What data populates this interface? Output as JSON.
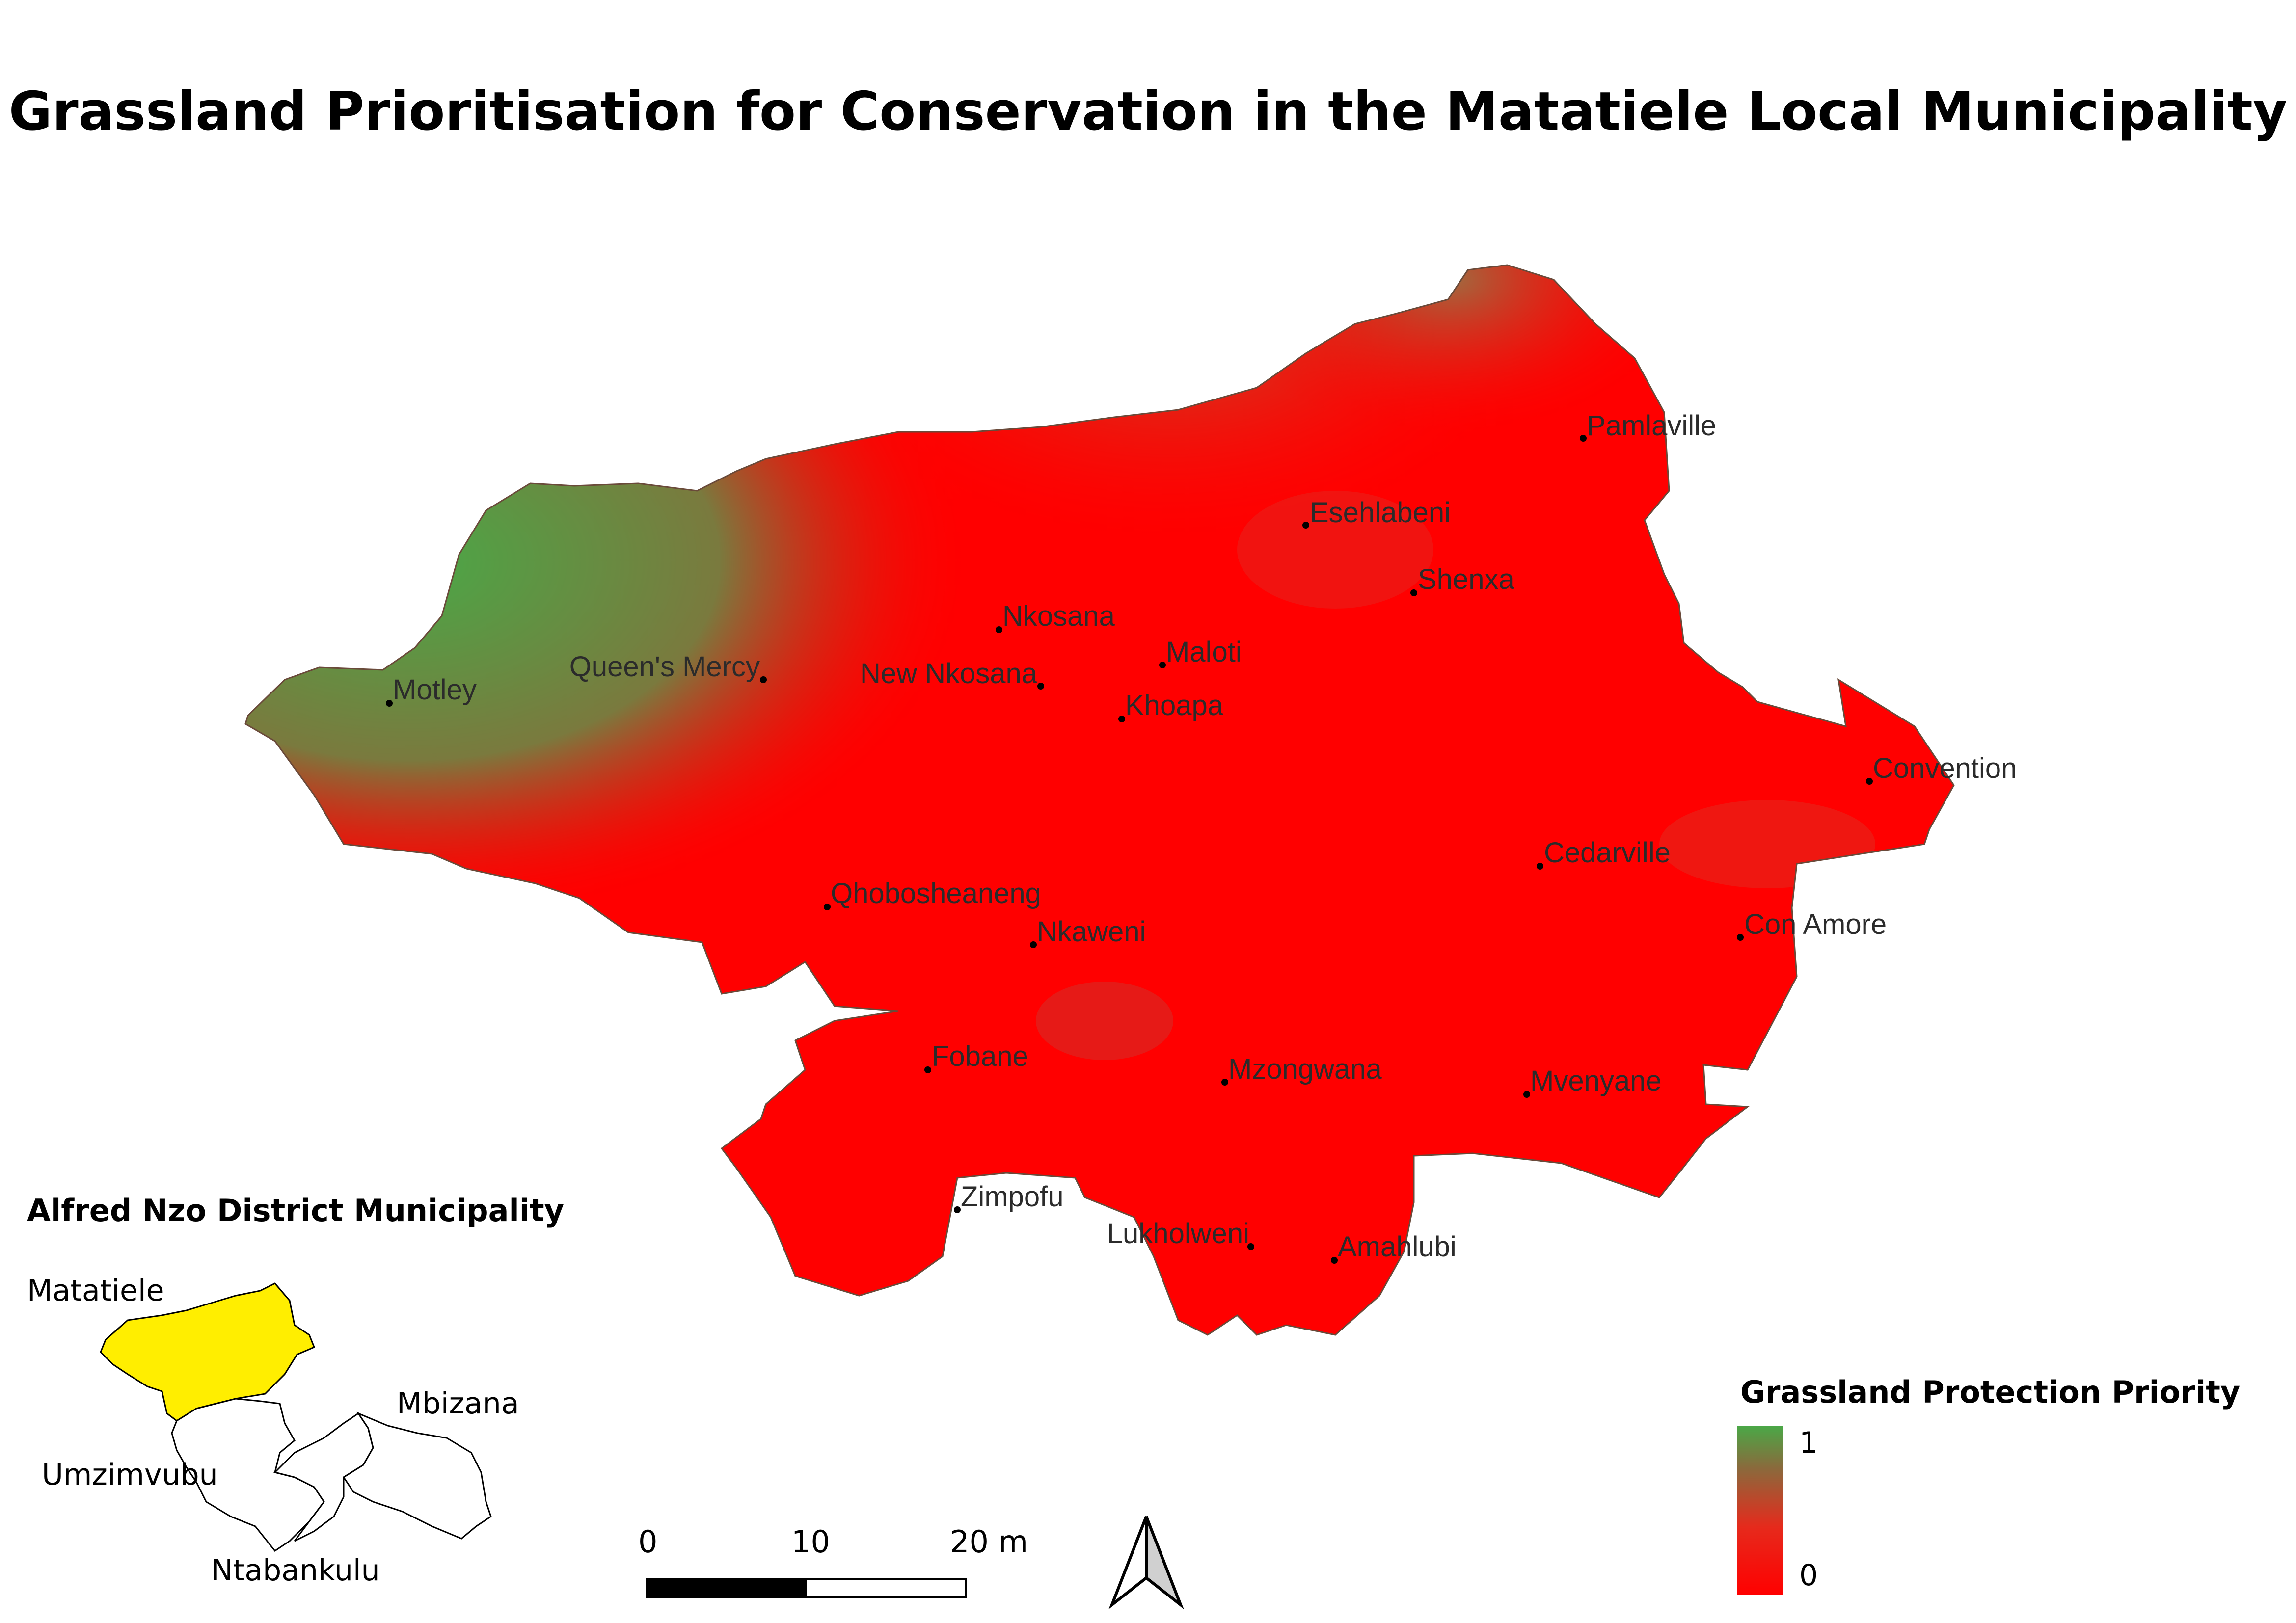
{
  "title": "Grassland Prioritisation for Conservation in the Matatiele Local Municipality",
  "places": [
    {
      "name": "Pamlaville"
    },
    {
      "name": "Esehlabeni"
    },
    {
      "name": "Shenxa"
    },
    {
      "name": "Nkosana"
    },
    {
      "name": "Maloti"
    },
    {
      "name": "Queen's Mercy"
    },
    {
      "name": "New Nkosana"
    },
    {
      "name": "Motley"
    },
    {
      "name": "Khoapa"
    },
    {
      "name": "Convention"
    },
    {
      "name": "Cedarville"
    },
    {
      "name": "Qhobosheaneng"
    },
    {
      "name": "Nkaweni"
    },
    {
      "name": "Con Amore"
    },
    {
      "name": "Fobane"
    },
    {
      "name": "Mzongwana"
    },
    {
      "name": "Mvenyane"
    },
    {
      "name": "Zimpofu"
    },
    {
      "name": "Lukholweni"
    },
    {
      "name": "Amahlubi"
    }
  ],
  "inset": {
    "title": "Alfred Nzo District Municipality",
    "labels": [
      "Matatiele",
      "Mbizana",
      "Umzimvubu",
      "Ntabankulu"
    ],
    "highlight_color": "#ffee00"
  },
  "legend": {
    "title": "Grassland Protection Priority",
    "max_label": "1",
    "min_label": "0",
    "high_color": "#4aa847",
    "low_color": "#ff0000"
  },
  "scale_bar": {
    "labels": [
      "0",
      "10",
      "20 m"
    ]
  },
  "north_arrow": {
    "icon": "north-arrow-icon"
  }
}
